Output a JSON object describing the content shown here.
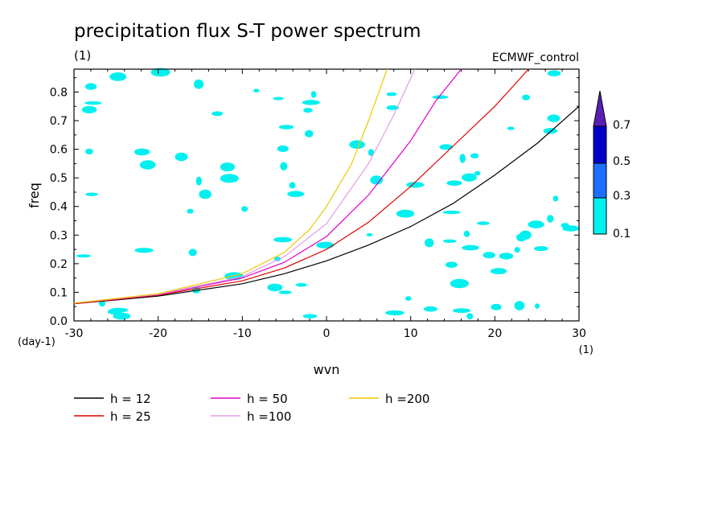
{
  "chart_data": {
    "type": "line",
    "title": "precipitation flux S-T power spectrum",
    "subtitle": "ECMWF_control",
    "title_units": "(1)",
    "xlabel": "wvn",
    "ylabel": "freq",
    "x_units": "(1)",
    "y_units": "(day-1)",
    "xlim": [
      -30,
      30
    ],
    "ylim": [
      0,
      0.88
    ],
    "x_ticks": [
      -30,
      -20,
      -10,
      0,
      10,
      20,
      30
    ],
    "y_ticks": [
      0.0,
      0.1,
      0.2,
      0.3,
      0.4,
      0.5,
      0.6,
      0.7,
      0.8
    ],
    "x_tick_labels": [
      "-30",
      "-20",
      "-10",
      "0",
      "10",
      "20",
      "30"
    ],
    "y_tick_labels": [
      "0.0",
      "0.1",
      "0.2",
      "0.3",
      "0.4",
      "0.5",
      "0.6",
      "0.7",
      "0.8"
    ],
    "series": [
      {
        "name": "h = 12",
        "color": "#000000",
        "x": [
          -30,
          -20,
          -10,
          -5,
          0,
          5,
          10,
          15,
          20,
          25,
          30
        ],
        "y": [
          0.06,
          0.087,
          0.13,
          0.165,
          0.21,
          0.265,
          0.33,
          0.41,
          0.51,
          0.62,
          0.75
        ]
      },
      {
        "name": "h = 25",
        "color": "#e00000",
        "x": [
          -30,
          -20,
          -10,
          -5,
          0,
          5,
          10,
          15,
          20,
          24
        ],
        "y": [
          0.06,
          0.09,
          0.14,
          0.185,
          0.25,
          0.345,
          0.47,
          0.61,
          0.75,
          0.88
        ]
      },
      {
        "name": "h = 50",
        "color": "#e000c8",
        "x": [
          -30,
          -20,
          -10,
          -5,
          0,
          5,
          10,
          13,
          16
        ],
        "y": [
          0.062,
          0.092,
          0.15,
          0.205,
          0.295,
          0.44,
          0.63,
          0.77,
          0.88
        ]
      },
      {
        "name": "h =100",
        "color": "#e39be6",
        "x": [
          -30,
          -20,
          -10,
          -5,
          0,
          5,
          8,
          10.5
        ],
        "y": [
          0.062,
          0.093,
          0.155,
          0.225,
          0.34,
          0.55,
          0.72,
          0.88
        ]
      },
      {
        "name": "h =200",
        "color": "#f0c800",
        "x": [
          -30,
          -20,
          -10,
          -5,
          -2,
          0,
          3,
          5,
          7.2
        ],
        "y": [
          0.062,
          0.095,
          0.165,
          0.24,
          0.32,
          0.4,
          0.55,
          0.7,
          0.88
        ]
      }
    ],
    "colorbar": {
      "labels": [
        "0.1",
        "0.3",
        "0.5",
        "0.7"
      ],
      "levels": [
        0.1,
        0.3,
        0.5,
        0.7
      ],
      "colors": [
        "#00f0f0",
        "#1e6eff",
        "#0000c8",
        "#5a1eb4"
      ]
    }
  }
}
